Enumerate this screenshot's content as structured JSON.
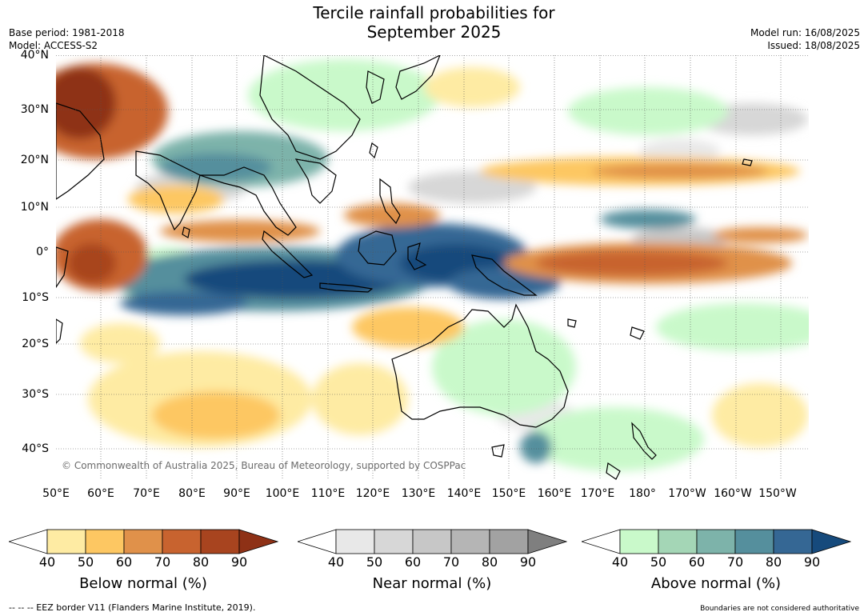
{
  "title": {
    "line1": "Tercile rainfall probabilities for",
    "line2": "September 2025"
  },
  "meta": {
    "base_period": "Base period: 1981-2018",
    "model": "Model: ACCESS-S2",
    "model_run": "Model run: 16/08/2025",
    "issued": "Issued: 18/08/2025"
  },
  "map": {
    "lat_labels": [
      "40°N",
      "30°N",
      "20°N",
      "10°N",
      "0°",
      "10°S",
      "20°S",
      "30°S",
      "40°S"
    ],
    "lon_labels": [
      "50°E",
      "60°E",
      "70°E",
      "80°E",
      "90°E",
      "100°E",
      "110°E",
      "120°E",
      "130°E",
      "140°E",
      "150°E",
      "160°E",
      "170°E",
      "180°",
      "170°W",
      "160°W",
      "150°W"
    ],
    "extent": {
      "lon_min": 50,
      "lon_max": 216,
      "lat_min": -46,
      "lat_max": 40
    },
    "copyright": "© Commonwealth of Australia 2025, Bureau of Meteorology, supported by COSPPac"
  },
  "colorbars": {
    "below": {
      "title": "Below normal (%)",
      "ticks": [
        "40",
        "50",
        "60",
        "70",
        "80",
        "90"
      ],
      "colors": [
        "#ffffff",
        "#feeba3",
        "#fdc762",
        "#e0914a",
        "#c8632f",
        "#a8441f",
        "#8e3116"
      ]
    },
    "near": {
      "title": "Near normal (%)",
      "ticks": [
        "40",
        "50",
        "60",
        "70",
        "80",
        "90"
      ],
      "colors": [
        "#ffffff",
        "#e8e8e8",
        "#d7d7d7",
        "#c7c7c7",
        "#b5b5b5",
        "#a2a2a2",
        "#7f7f7f"
      ]
    },
    "above": {
      "title": "Above normal (%)",
      "ticks": [
        "40",
        "50",
        "60",
        "70",
        "80",
        "90"
      ],
      "colors": [
        "#ffffff",
        "#c9f9ca",
        "#a4d6b6",
        "#7db3aa",
        "#558f9d",
        "#356794",
        "#164a7c"
      ]
    }
  },
  "footer": {
    "eez": "--  --  -- EEZ border V11 (Flanders Marine Institute, 2019).",
    "disclaimer": "Boundaries are not considered authoritative"
  }
}
